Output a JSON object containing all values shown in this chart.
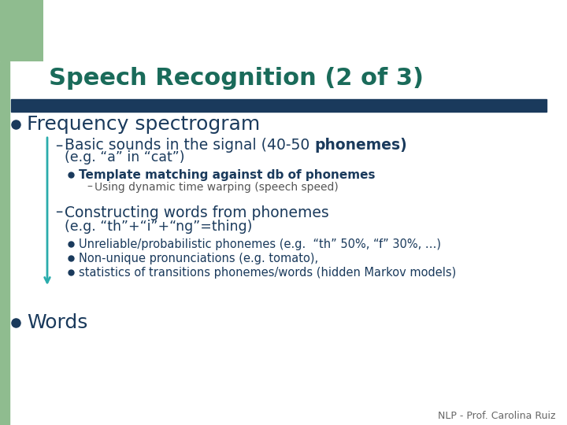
{
  "bg_color": "#ffffff",
  "left_bar_top_color": "#8fbc8f",
  "title": "Speech Recognition (2 of 3)",
  "title_color": "#1a6b5a",
  "title_fontsize": 22,
  "header_bar_color": "#1a3a5c",
  "bullet1": "Frequency spectrogram",
  "bullet1_color": "#1a3a5c",
  "bullet1_fontsize": 18,
  "sub1_text": "Basic sounds in the signal (40-50 ",
  "sub1_bold": "phonemes)",
  "sub1_cont": "(e.g. “a” in “cat”)",
  "sub1_color": "#1a3a5c",
  "sub1_fontsize": 13.5,
  "sub1b_text": "Template matching against db of phonemes",
  "sub1b_color": "#1a3a5c",
  "sub1b_fontsize": 11,
  "sub1b2_text": "Using dynamic time warping (speech speed)",
  "sub1b2_color": "#555555",
  "sub1b2_fontsize": 10,
  "sub2_text": "Constructing words from phonemes",
  "sub2_cont": "(e.g. “th”+“i”+“ng”=thing)",
  "sub2_color": "#1a3a5c",
  "sub2_fontsize": 13.5,
  "bullet3a": "Unreliable/probabilistic phonemes (e.g.  “th” 50%, “f” 30%, …)",
  "bullet3b": "Non-unique pronunciations (e.g. tomato),",
  "bullet3c": "statistics of transitions phonemes/words (hidden Markov models)",
  "bullet3_color": "#1a3a5c",
  "bullet3_fontsize": 10.5,
  "bullet_words": "Words",
  "bullet_words_color": "#1a3a5c",
  "bullet_words_fontsize": 18,
  "footer": "NLP - Prof. Carolina Ruiz",
  "footer_color": "#666666",
  "footer_fontsize": 9,
  "arrow_color": "#2aacac",
  "dot_color": "#1a3a5c",
  "dot_color_teal": "#2aacac"
}
